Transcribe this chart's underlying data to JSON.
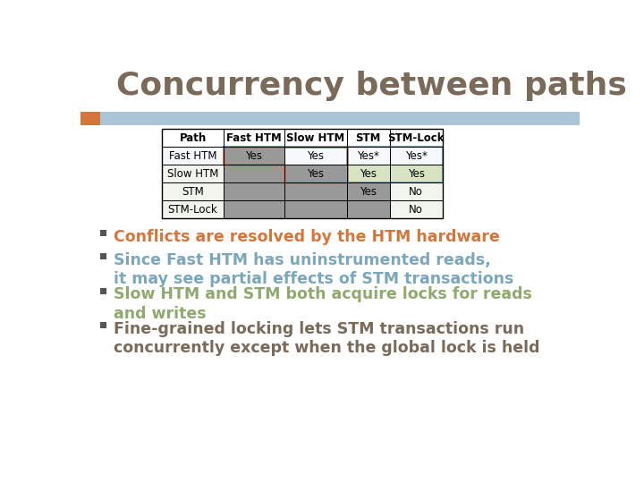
{
  "title": "Concurrency between paths",
  "title_color": "#7a6a5a",
  "title_fontsize": 26,
  "bg_color": "#ffffff",
  "header_bar_color": "#aac4d8",
  "orange_accent_color": "#d4763b",
  "table": {
    "col_labels": [
      "Path",
      "Fast HTM",
      "Slow HTM",
      "STM",
      "STM-Lock"
    ],
    "row_labels": [
      "Fast HTM",
      "Slow HTM",
      "STM",
      "STM-Lock"
    ],
    "data": [
      [
        "Yes",
        "Yes",
        "Yes*",
        "Yes*"
      ],
      [
        "",
        "Yes",
        "Yes",
        "Yes"
      ],
      [
        "",
        "",
        "Yes",
        "No"
      ],
      [
        "",
        "",
        "",
        "No"
      ]
    ],
    "gray_fill_color": "#999999",
    "orange_border_color": "#d4763b",
    "blue_border_color": "#7ba7bc",
    "green_row_color": "#c8d8a8",
    "blue_row_color": "#d0e0f0"
  },
  "bullets": [
    {
      "text": "Conflicts are resolved by the HTM hardware",
      "color": "#d4763b",
      "bold": true,
      "lines": 1
    },
    {
      "text": "Since Fast HTM has uninstrumented reads,\nit may see partial effects of STM transactions",
      "color": "#7ba7bc",
      "bold": true,
      "lines": 2
    },
    {
      "text": "Slow HTM and STM both acquire locks for reads\nand writes",
      "color": "#8faa6e",
      "bold": true,
      "lines": 2
    },
    {
      "text": "Fine-grained locking lets STM transactions run\nconcurrently except when the global lock is held",
      "color": "#7a6a5a",
      "bold": true,
      "lines": 2
    }
  ],
  "bullet_square_color": "#555555",
  "bullet_fontsize": 12.5
}
